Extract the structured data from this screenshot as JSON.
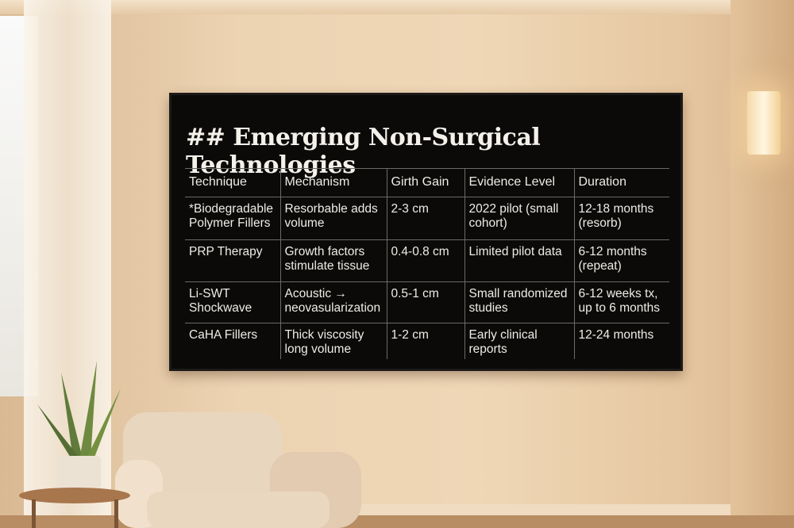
{
  "screen": {
    "title": "## Emerging Non-Surgical Technologies",
    "table": {
      "headers": [
        "Technique",
        "Mechanism",
        "Girth Gain",
        "Evidence Level",
        "Duration"
      ],
      "rows": [
        [
          "*Biodegradable Polymer Fillers",
          "Resorbable adds volume",
          "2-3 cm",
          "2022 pilot (small cohort)",
          "12-18 months (resorb)"
        ],
        [
          "PRP Therapy",
          "Growth factors stimulate tissue",
          "0.4-0.8 cm",
          "Limited pilot data",
          "6-12 months (repeat)"
        ],
        [
          "Li-SWT Shockwave",
          "Acoustic → neovasularization",
          "0.5-1 cm",
          "Small randomized studies",
          "6-12 weeks tx, up to 6 months"
        ],
        [
          "CaHA Fillers",
          "Thick viscosity long volume",
          "1-2 cm",
          "Early clinical reports",
          "12-24 months"
        ]
      ]
    }
  },
  "colors": {
    "screen": "#0b0a09",
    "text": "#efece6",
    "wall": "#ecd3b2"
  }
}
